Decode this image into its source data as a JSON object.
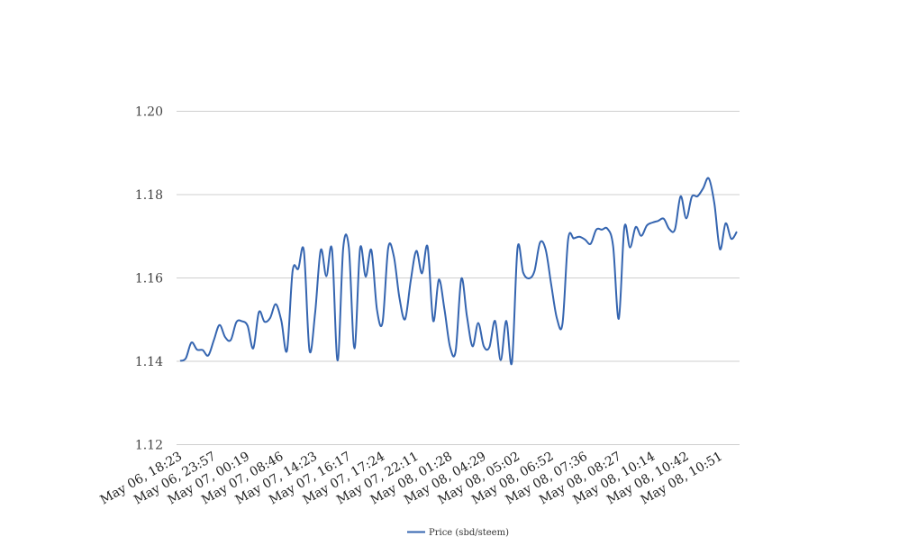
{
  "chart_data": {
    "type": "line",
    "title": "",
    "xlabel": "",
    "ylabel": "",
    "ylim": [
      1.12,
      1.2
    ],
    "yticks": [
      "1.12",
      "1.14",
      "1.16",
      "1.18",
      "1.20"
    ],
    "ytick_values": [
      1.12,
      1.14,
      1.16,
      1.18,
      1.2
    ],
    "xtick_labels": [
      "May 06, 18:23",
      "May 06, 23:57",
      "May 07, 00:19",
      "May 07, 08:46",
      "May 07, 14:23",
      "May 07, 16:17",
      "May 07, 17:24",
      "May 07, 22:11",
      "May 08, 01:28",
      "May 08, 04:29",
      "May 08, 05:02",
      "May 08, 06:52",
      "May 08, 07:36",
      "May 08, 08:27",
      "May 08, 10:14",
      "May 08, 10:42",
      "May 08, 10:51"
    ],
    "grid": true,
    "legend_position": "bottom-center",
    "series": [
      {
        "name": "Price (sbd/steem)",
        "color": "#3565b0",
        "values": [
          1.1401,
          1.1407,
          1.1445,
          1.1428,
          1.1427,
          1.1414,
          1.1451,
          1.1487,
          1.1458,
          1.1451,
          1.1494,
          1.1496,
          1.1485,
          1.1431,
          1.1518,
          1.1495,
          1.1504,
          1.1537,
          1.1497,
          1.1426,
          1.1617,
          1.1622,
          1.1665,
          1.1426,
          1.1516,
          1.1667,
          1.1604,
          1.1669,
          1.1402,
          1.1672,
          1.1673,
          1.1431,
          1.1671,
          1.1603,
          1.1667,
          1.1524,
          1.1494,
          1.1672,
          1.1652,
          1.1552,
          1.1501,
          1.1593,
          1.1665,
          1.1611,
          1.1675,
          1.1497,
          1.1596,
          1.1525,
          1.1434,
          1.1425,
          1.1598,
          1.1508,
          1.1436,
          1.1492,
          1.1436,
          1.1434,
          1.1497,
          1.1403,
          1.1497,
          1.1397,
          1.1672,
          1.1613,
          1.1599,
          1.1616,
          1.1685,
          1.1668,
          1.1583,
          1.1503,
          1.1491,
          1.1693,
          1.1695,
          1.1699,
          1.1692,
          1.1682,
          1.1716,
          1.1716,
          1.1718,
          1.1676,
          1.1502,
          1.1722,
          1.1673,
          1.1722,
          1.1701,
          1.1726,
          1.1733,
          1.1737,
          1.1742,
          1.1717,
          1.1717,
          1.1796,
          1.1743,
          1.1795,
          1.1796,
          1.1815,
          1.1839,
          1.1779,
          1.1669,
          1.1731,
          1.1694,
          1.1711
        ]
      }
    ]
  }
}
